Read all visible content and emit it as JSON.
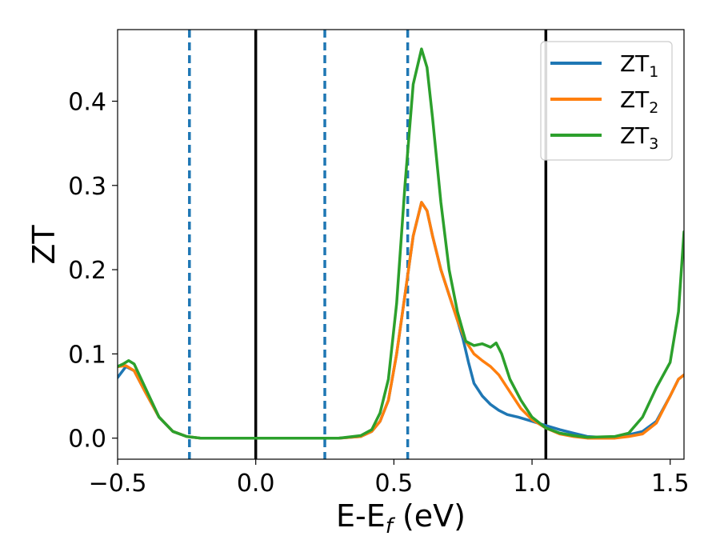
{
  "chart_data": {
    "type": "line",
    "xlabel_main": "E-E",
    "xlabel_sub": "f",
    "xlabel_unit": " (eV)",
    "ylabel": "ZT",
    "xlim": [
      -0.5,
      1.55
    ],
    "ylim": [
      -0.025,
      0.485
    ],
    "grid": false,
    "legend_position": "top-right",
    "x_ticks": [
      {
        "value": -0.5,
        "label": "−0.5"
      },
      {
        "value": 0.0,
        "label": "0.0"
      },
      {
        "value": 0.5,
        "label": "0.5"
      },
      {
        "value": 1.0,
        "label": "1.0"
      },
      {
        "value": 1.5,
        "label": "1.5"
      }
    ],
    "y_ticks": [
      {
        "value": 0.0,
        "label": "0.0"
      },
      {
        "value": 0.1,
        "label": "0.1"
      },
      {
        "value": 0.2,
        "label": "0.2"
      },
      {
        "value": 0.3,
        "label": "0.3"
      },
      {
        "value": 0.4,
        "label": "0.4"
      }
    ],
    "vertical_lines": [
      {
        "x": -0.24,
        "style": "dashed",
        "color": "#1f77b4"
      },
      {
        "x": 0.0,
        "style": "solid",
        "color": "#000000"
      },
      {
        "x": 0.25,
        "style": "dashed",
        "color": "#1f77b4"
      },
      {
        "x": 0.55,
        "style": "dashed",
        "color": "#1f77b4"
      },
      {
        "x": 1.05,
        "style": "solid",
        "color": "#000000"
      }
    ],
    "series": [
      {
        "name": "ZT",
        "sub": "1",
        "color": "#1f77b4",
        "points": [
          [
            -0.5,
            0.072
          ],
          [
            -0.47,
            0.085
          ],
          [
            -0.44,
            0.08
          ],
          [
            -0.4,
            0.055
          ],
          [
            -0.35,
            0.025
          ],
          [
            -0.3,
            0.008
          ],
          [
            -0.25,
            0.002
          ],
          [
            -0.2,
            0.0
          ],
          [
            0.0,
            0.0
          ],
          [
            0.3,
            0.0
          ],
          [
            0.38,
            0.002
          ],
          [
            0.42,
            0.008
          ],
          [
            0.45,
            0.02
          ],
          [
            0.48,
            0.045
          ],
          [
            0.51,
            0.1
          ],
          [
            0.54,
            0.17
          ],
          [
            0.57,
            0.24
          ],
          [
            0.6,
            0.28
          ],
          [
            0.62,
            0.27
          ],
          [
            0.64,
            0.24
          ],
          [
            0.67,
            0.2
          ],
          [
            0.7,
            0.17
          ],
          [
            0.73,
            0.14
          ],
          [
            0.75,
            0.118
          ],
          [
            0.77,
            0.09
          ],
          [
            0.79,
            0.065
          ],
          [
            0.82,
            0.05
          ],
          [
            0.85,
            0.04
          ],
          [
            0.88,
            0.033
          ],
          [
            0.91,
            0.028
          ],
          [
            0.95,
            0.025
          ],
          [
            1.0,
            0.02
          ],
          [
            1.05,
            0.015
          ],
          [
            1.1,
            0.01
          ],
          [
            1.15,
            0.006
          ],
          [
            1.2,
            0.002
          ],
          [
            1.25,
            0.001
          ],
          [
            1.3,
            0.001
          ],
          [
            1.35,
            0.004
          ],
          [
            1.4,
            0.008
          ],
          [
            1.45,
            0.02
          ],
          [
            1.5,
            0.05
          ],
          [
            1.53,
            0.07
          ],
          [
            1.55,
            0.075
          ]
        ]
      },
      {
        "name": "ZT",
        "sub": "2",
        "color": "#ff7f0e",
        "points": [
          [
            -0.5,
            0.085
          ],
          [
            -0.47,
            0.086
          ],
          [
            -0.44,
            0.08
          ],
          [
            -0.4,
            0.055
          ],
          [
            -0.35,
            0.025
          ],
          [
            -0.3,
            0.008
          ],
          [
            -0.25,
            0.002
          ],
          [
            -0.2,
            0.0
          ],
          [
            0.0,
            0.0
          ],
          [
            0.3,
            0.0
          ],
          [
            0.38,
            0.002
          ],
          [
            0.42,
            0.008
          ],
          [
            0.45,
            0.02
          ],
          [
            0.48,
            0.045
          ],
          [
            0.51,
            0.1
          ],
          [
            0.54,
            0.17
          ],
          [
            0.57,
            0.24
          ],
          [
            0.6,
            0.28
          ],
          [
            0.62,
            0.27
          ],
          [
            0.64,
            0.24
          ],
          [
            0.67,
            0.2
          ],
          [
            0.7,
            0.17
          ],
          [
            0.73,
            0.14
          ],
          [
            0.76,
            0.115
          ],
          [
            0.79,
            0.1
          ],
          [
            0.82,
            0.092
          ],
          [
            0.85,
            0.085
          ],
          [
            0.88,
            0.075
          ],
          [
            0.92,
            0.055
          ],
          [
            0.96,
            0.035
          ],
          [
            1.0,
            0.022
          ],
          [
            1.05,
            0.012
          ],
          [
            1.1,
            0.005
          ],
          [
            1.15,
            0.002
          ],
          [
            1.2,
            0.0
          ],
          [
            1.3,
            0.0
          ],
          [
            1.35,
            0.002
          ],
          [
            1.4,
            0.005
          ],
          [
            1.45,
            0.018
          ],
          [
            1.5,
            0.05
          ],
          [
            1.53,
            0.07
          ],
          [
            1.55,
            0.075
          ]
        ]
      },
      {
        "name": "ZT",
        "sub": "3",
        "color": "#2ca02c",
        "points": [
          [
            -0.5,
            0.085
          ],
          [
            -0.48,
            0.088
          ],
          [
            -0.46,
            0.092
          ],
          [
            -0.44,
            0.088
          ],
          [
            -0.4,
            0.06
          ],
          [
            -0.35,
            0.025
          ],
          [
            -0.3,
            0.008
          ],
          [
            -0.25,
            0.002
          ],
          [
            -0.2,
            0.0
          ],
          [
            0.0,
            0.0
          ],
          [
            0.3,
            0.0
          ],
          [
            0.38,
            0.003
          ],
          [
            0.42,
            0.01
          ],
          [
            0.45,
            0.03
          ],
          [
            0.48,
            0.07
          ],
          [
            0.51,
            0.16
          ],
          [
            0.54,
            0.3
          ],
          [
            0.57,
            0.42
          ],
          [
            0.6,
            0.462
          ],
          [
            0.62,
            0.44
          ],
          [
            0.64,
            0.38
          ],
          [
            0.67,
            0.28
          ],
          [
            0.7,
            0.2
          ],
          [
            0.73,
            0.15
          ],
          [
            0.76,
            0.115
          ],
          [
            0.79,
            0.11
          ],
          [
            0.82,
            0.112
          ],
          [
            0.85,
            0.108
          ],
          [
            0.87,
            0.113
          ],
          [
            0.89,
            0.1
          ],
          [
            0.92,
            0.07
          ],
          [
            0.96,
            0.045
          ],
          [
            1.0,
            0.025
          ],
          [
            1.05,
            0.012
          ],
          [
            1.1,
            0.006
          ],
          [
            1.15,
            0.003
          ],
          [
            1.2,
            0.001
          ],
          [
            1.3,
            0.002
          ],
          [
            1.35,
            0.006
          ],
          [
            1.4,
            0.025
          ],
          [
            1.45,
            0.06
          ],
          [
            1.5,
            0.09
          ],
          [
            1.53,
            0.15
          ],
          [
            1.55,
            0.245
          ]
        ]
      }
    ]
  }
}
